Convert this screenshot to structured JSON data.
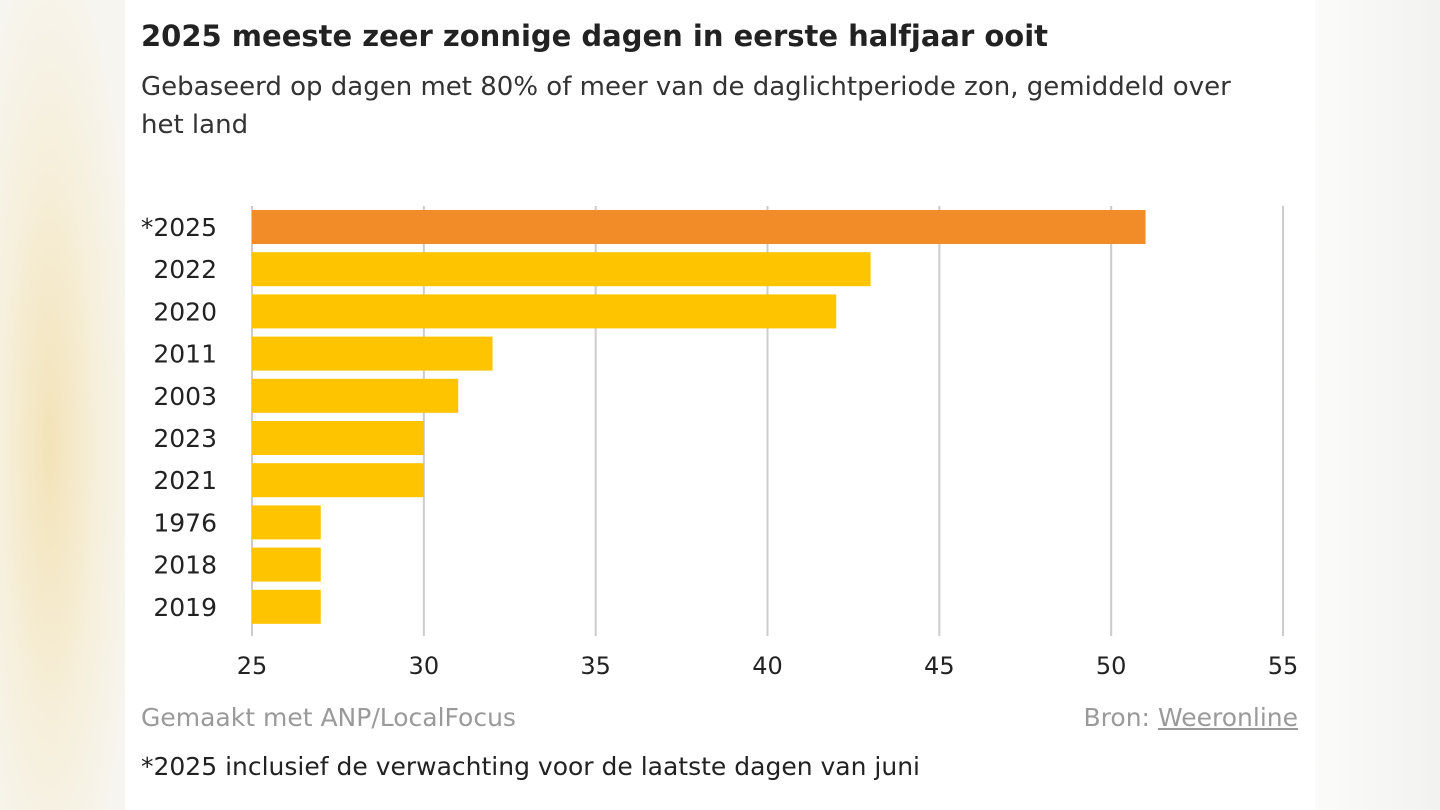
{
  "header": {
    "title": "2025 meeste zeer zonnige dagen in eerste halfjaar ooit",
    "subtitle": "Gebaseerd op dagen met 80% of meer van de daglichtperiode zon, gemiddeld over het land"
  },
  "footer": {
    "credit": "Gemaakt met ANP/LocalFocus",
    "source_label": "Bron:",
    "source_link": "Weeronline",
    "footnote": "*2025 inclusief de verwachting voor de laatste dagen van juni"
  },
  "colors": {
    "highlight": "#f28c28",
    "bar": "#ffc400",
    "grid": "#cccccc",
    "text": "#222222"
  },
  "chart_data": {
    "type": "bar",
    "orientation": "horizontal",
    "categories": [
      "*2025",
      "2022",
      "2020",
      "2011",
      "2003",
      "2023",
      "2021",
      "1976",
      "2018",
      "2019"
    ],
    "values": [
      51,
      43,
      42,
      32,
      31,
      30,
      30,
      27,
      27,
      27
    ],
    "highlight_category": "*2025",
    "xlim": [
      25,
      55
    ],
    "xticks": [
      25,
      30,
      35,
      40,
      45,
      50,
      55
    ],
    "grid": true,
    "xlabel": "",
    "ylabel": ""
  }
}
